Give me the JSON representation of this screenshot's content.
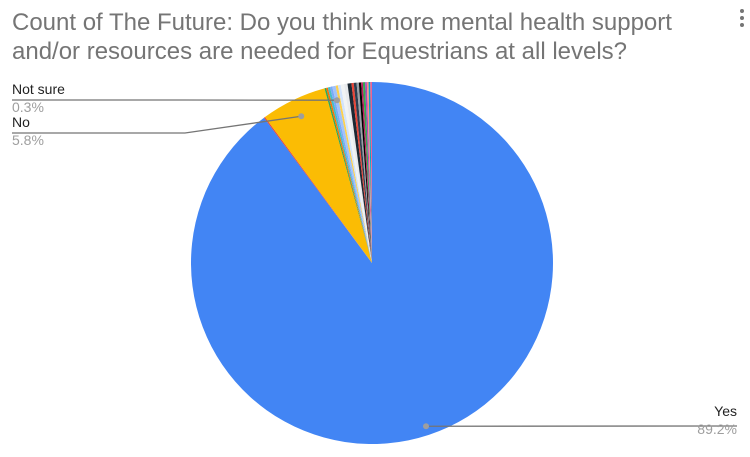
{
  "chart_data": {
    "type": "pie",
    "title": "Count of The Future: Do you think more mental health support and/or resources are needed for Equestrians at all levels?",
    "start_angle": "top, clockwise",
    "slices": [
      {
        "name": "Yes",
        "value": 89.2,
        "label": "89.2%",
        "color": "#4285f4",
        "labeled": true
      },
      {
        "name": "",
        "value": 0.1,
        "color": "#ea4335",
        "labeled": false
      },
      {
        "name": "No",
        "value": 5.8,
        "label": "5.8%",
        "color": "#fbbc04",
        "labeled": true
      },
      {
        "name": "",
        "value": 0.15,
        "color": "#34a853",
        "labeled": false
      },
      {
        "name": "",
        "value": 0.15,
        "color": "#ff6d01",
        "labeled": false
      },
      {
        "name": "",
        "value": 0.2,
        "color": "#46bdc6",
        "labeled": false
      },
      {
        "name": "",
        "value": 0.2,
        "color": "#7baaf7",
        "labeled": false
      },
      {
        "name": "Not sure",
        "value": 0.3,
        "label": "0.3%",
        "color": "#a1c2fa",
        "labeled": true
      },
      {
        "name": "",
        "value": 0.2,
        "color": "#fcd04f",
        "labeled": false
      },
      {
        "name": "",
        "value": 0.25,
        "color": "#d2e3fc",
        "labeled": false
      },
      {
        "name": "",
        "value": 0.3,
        "color": "#f1f3f4",
        "labeled": false
      },
      {
        "name": "",
        "value": 0.3,
        "color": "#e8eaed",
        "labeled": false
      },
      {
        "name": "",
        "value": 0.35,
        "color": "#1c2833",
        "labeled": false
      },
      {
        "name": "",
        "value": 0.2,
        "color": "#ea4335",
        "labeled": false
      },
      {
        "name": "",
        "value": 0.25,
        "color": "#2c3e50",
        "labeled": false
      },
      {
        "name": "",
        "value": 0.2,
        "color": "#9aa0a6",
        "labeled": false
      },
      {
        "name": "",
        "value": 0.2,
        "color": "#000000",
        "labeled": false
      },
      {
        "name": "",
        "value": 0.15,
        "color": "#c2185b",
        "labeled": false
      },
      {
        "name": "",
        "value": 0.2,
        "color": "#34a853",
        "labeled": false
      },
      {
        "name": "",
        "value": 0.15,
        "color": "#ab47bc",
        "labeled": false
      },
      {
        "name": "",
        "value": 0.15,
        "color": "#ff8a80",
        "labeled": false
      },
      {
        "name": "",
        "value": 0.15,
        "color": "#00acc1",
        "labeled": false
      },
      {
        "name": "",
        "value": 0.15,
        "color": "#f06292",
        "labeled": false
      }
    ]
  }
}
